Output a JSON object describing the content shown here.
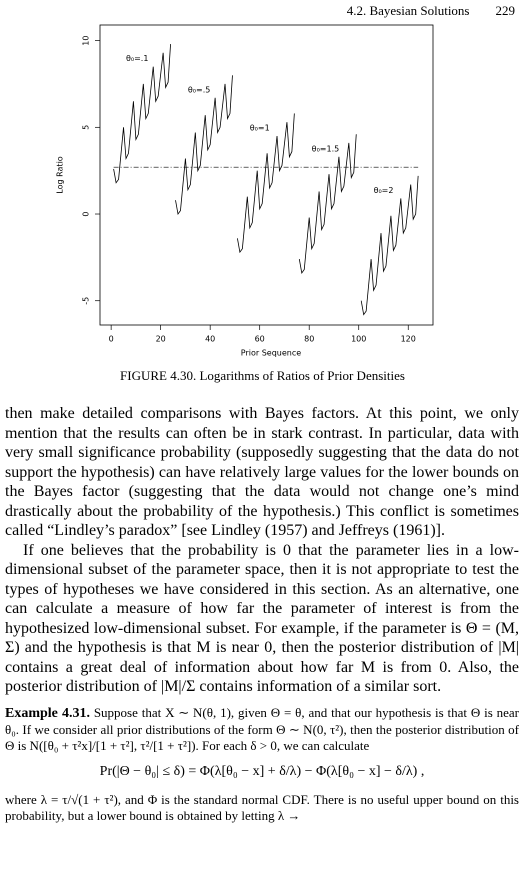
{
  "header": {
    "section": "4.2.  Bayesian Solutions",
    "page": "229"
  },
  "chart_data": {
    "type": "line",
    "x_label": "Prior Sequence",
    "y_label": "Log Ratio",
    "xlim": [
      -4.5,
      130
    ],
    "ylim": [
      -6.4,
      10.9
    ],
    "xticks": [
      0,
      20,
      40,
      60,
      80,
      100,
      120
    ],
    "yticks": [
      10,
      5,
      0,
      -5
    ],
    "reference_line": 2.7,
    "series": [
      {
        "name": "θ₀=.1",
        "color": "#000000",
        "x": [
          1,
          2,
          3,
          5,
          6,
          7,
          9,
          10,
          11,
          13,
          14,
          15,
          17,
          18,
          19,
          21,
          22,
          23,
          24
        ],
        "values": [
          2.6,
          1.8,
          2.0,
          5.0,
          3.2,
          3.5,
          6.5,
          4.3,
          4.6,
          7.5,
          5.5,
          5.8,
          8.5,
          6.5,
          6.8,
          9.3,
          7.3,
          7.6,
          9.8
        ]
      },
      {
        "name": "θ₀=.5",
        "color": "#000000",
        "x": [
          26,
          27,
          28,
          30,
          31,
          32,
          34,
          35,
          36,
          38,
          39,
          40,
          42,
          43,
          44,
          46,
          47,
          48,
          49
        ],
        "values": [
          0.8,
          0,
          0.2,
          3.2,
          1.4,
          1.7,
          4.7,
          2.5,
          2.8,
          5.7,
          3.7,
          4.0,
          6.7,
          4.7,
          5.0,
          7.5,
          5.5,
          5.8,
          8.0
        ]
      },
      {
        "name": "θ₀=1",
        "color": "#000000",
        "x": [
          51,
          52,
          53,
          55,
          56,
          57,
          59,
          60,
          61,
          63,
          64,
          65,
          67,
          68,
          69,
          71,
          72,
          73,
          74
        ],
        "values": [
          -1.4,
          -2.2,
          -2.0,
          1.0,
          -0.8,
          -0.5,
          2.5,
          0.3,
          0.6,
          3.5,
          1.5,
          1.8,
          4.5,
          2.5,
          2.8,
          5.3,
          3.3,
          3.6,
          5.8
        ]
      },
      {
        "name": "θ₀=1.5",
        "color": "#000000",
        "x": [
          76,
          77,
          78,
          80,
          81,
          82,
          84,
          85,
          86,
          88,
          89,
          90,
          92,
          93,
          94,
          96,
          97,
          98,
          99
        ],
        "values": [
          -2.6,
          -3.4,
          -3.2,
          -0.2,
          -2.0,
          -1.7,
          1.3,
          -0.9,
          -0.6,
          2.3,
          0.3,
          0.6,
          3.3,
          1.3,
          1.6,
          4.1,
          2.1,
          2.4,
          4.6
        ]
      },
      {
        "name": "θ₀=2",
        "color": "#000000",
        "x": [
          101,
          102,
          103,
          105,
          106,
          107,
          109,
          110,
          111,
          113,
          114,
          115,
          117,
          118,
          119,
          121,
          122,
          123,
          124
        ],
        "values": [
          -5.0,
          -5.8,
          -5.6,
          -2.6,
          -4.4,
          -4.1,
          -1.1,
          -3.3,
          -3.0,
          -0.1,
          -2.1,
          -1.8,
          0.9,
          -1.1,
          -0.8,
          1.7,
          -0.3,
          0.0,
          2.2
        ]
      }
    ]
  },
  "caption": "FIGURE 4.30. Logarithms of Ratios of Prior Densities",
  "paragraphs": [
    "then make detailed comparisons with Bayes factors. At this point, we only mention that the results can often be in stark contrast. In particular, data with very small significance probability (supposedly suggesting that the data do not support the hypothesis) can have relatively large values for the lower bounds on the Bayes factor (suggesting that the data would not change one’s mind drastically about the probability of the hypothesis.) This conflict is sometimes called “Lindley’s paradox” [see Lindley (1957) and Jeffreys (1961)].",
    "If one believes that the probability is 0 that the parameter lies in a low-dimensional subset of the parameter space, then it is not appropriate to test the types of hypotheses we have considered in this section. As an alternative, one can calculate a measure of how far the parameter of interest is from the hypothesized low-dimensional subset. For example, if the parameter is Θ = (M, Σ) and the hypothesis is that M is near 0, then the posterior distribution of |M| contains a great deal of information about how far M is from 0. Also, the posterior distribution of |M|/Σ contains information of a similar sort."
  ],
  "example": {
    "label": "Example 4.31.",
    "text": "Suppose that X ∼ N(θ, 1), given Θ = θ, and that our hypothesis is that Θ is near θ₀. If we consider all prior distributions of the form Θ ∼ N(0, τ²), then the posterior distribution of Θ is N([θ₀ + τ²x]/[1 + τ²], τ²/[1 + τ²]). For each δ > 0, we can calculate",
    "equation": "Pr(|Θ − θ₀| ≤ δ) = Φ(λ[θ₀ − x] + δ/λ) − Φ(λ[θ₀ − x] − δ/λ) ,",
    "continuation": "where λ = τ/√(1 + τ²), and Φ is the standard normal CDF. There is no useful upper bound on this probability, but a lower bound is obtained by letting λ →"
  }
}
